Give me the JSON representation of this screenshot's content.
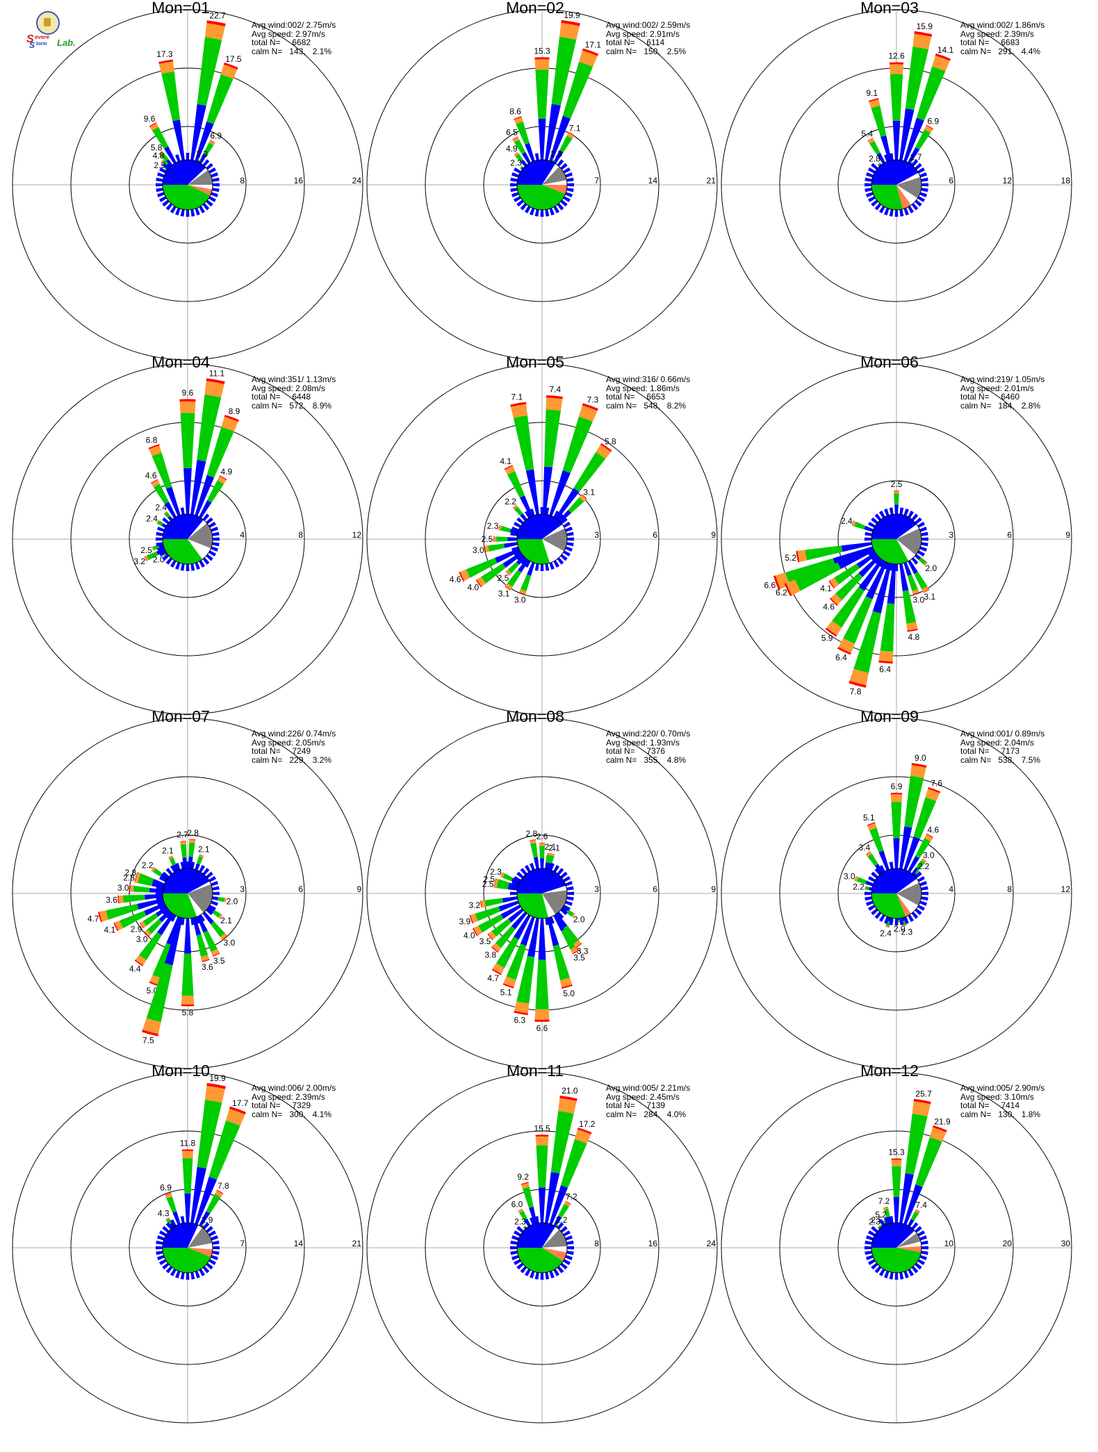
{
  "colors": {
    "blue": "#0000ff",
    "green": "#00cc00",
    "orange": "#ff9933",
    "red": "#ff0000",
    "gray": "#808080",
    "salmon": "#ff7f50",
    "white": "#ffffff",
    "grid": "#aaaaaa"
  },
  "logo": {
    "s1": "S",
    "w1": "evere",
    "s2": "S",
    "w2": "torm",
    "lab": "Lab."
  },
  "chart_data": [
    {
      "type": "windrose",
      "title": "Mon=01",
      "stats": {
        "avg_wind": "002/ 2.75m/s",
        "avg_speed": "2.97m/s",
        "total_n": "6682",
        "calm_n": "143,",
        "calm_pct": "2.1%"
      },
      "rings": [
        8,
        16,
        24
      ],
      "rmax": 24,
      "labels": [
        {
          "dir": 350,
          "value": 17.3
        },
        {
          "dir": 10,
          "value": 22.7
        },
        {
          "dir": 20,
          "value": 17.5
        },
        {
          "dir": 330,
          "value": 9.6
        },
        {
          "dir": 320,
          "value": 5.8
        },
        {
          "dir": 315,
          "value": 4.8
        },
        {
          "dir": 305,
          "value": 2.5
        },
        {
          "dir": 30,
          "value": 6.9
        },
        {
          "dir": 25,
          "value": 2.3
        }
      ],
      "pie": [
        {
          "c": "blue",
          "v": 38
        },
        {
          "c": "white",
          "v": 2
        },
        {
          "c": "gray",
          "v": 10
        },
        {
          "c": "white",
          "v": 3
        },
        {
          "c": "salmon",
          "v": 4
        },
        {
          "c": "green",
          "v": 43
        }
      ]
    },
    {
      "type": "windrose",
      "title": "Mon=02",
      "stats": {
        "avg_wind": "002/ 2.59m/s",
        "avg_speed": "2.91m/s",
        "total_n": "6114",
        "calm_n": "150,",
        "calm_pct": "2.5%"
      },
      "rings": [
        7,
        14,
        21
      ],
      "rmax": 21,
      "labels": [
        {
          "dir": 0,
          "value": 15.3
        },
        {
          "dir": 10,
          "value": 19.9
        },
        {
          "dir": 20,
          "value": 17.1
        },
        {
          "dir": 340,
          "value": 8.6
        },
        {
          "dir": 330,
          "value": 6.5
        },
        {
          "dir": 320,
          "value": 4.9
        },
        {
          "dir": 310,
          "value": 2.3
        },
        {
          "dir": 30,
          "value": 7.1
        },
        {
          "dir": 25,
          "value": 2.3
        }
      ],
      "pie": [
        {
          "c": "blue",
          "v": 34
        },
        {
          "c": "white",
          "v": 3
        },
        {
          "c": "gray",
          "v": 10
        },
        {
          "c": "white",
          "v": 3
        },
        {
          "c": "salmon",
          "v": 6
        },
        {
          "c": "green",
          "v": 44
        }
      ]
    },
    {
      "type": "windrose",
      "title": "Mon=03",
      "stats": {
        "avg_wind": "002/ 1.86m/s",
        "avg_speed": "2.39m/s",
        "total_n": "6683",
        "calm_n": "291,",
        "calm_pct": "4.4%"
      },
      "rings": [
        6,
        12,
        18
      ],
      "rmax": 18,
      "labels": [
        {
          "dir": 0,
          "value": 12.6
        },
        {
          "dir": 10,
          "value": 15.9
        },
        {
          "dir": 20,
          "value": 14.1
        },
        {
          "dir": 345,
          "value": 9.1
        },
        {
          "dir": 330,
          "value": 5.4
        },
        {
          "dir": 320,
          "value": 2.8
        },
        {
          "dir": 30,
          "value": 6.9
        },
        {
          "dir": 35,
          "value": 2.7
        }
      ],
      "pie": [
        {
          "c": "blue",
          "v": 42
        },
        {
          "c": "white",
          "v": 3
        },
        {
          "c": "gray",
          "v": 14
        },
        {
          "c": "white",
          "v": 6
        },
        {
          "c": "salmon",
          "v": 6
        },
        {
          "c": "green",
          "v": 29
        }
      ]
    },
    {
      "type": "windrose",
      "title": "Mon=04",
      "stats": {
        "avg_wind": "351/ 1.13m/s",
        "avg_speed": "2.08m/s",
        "total_n": "6448",
        "calm_n": "572,",
        "calm_pct": "8.9%"
      },
      "rings": [
        4,
        8,
        12
      ],
      "rmax": 12,
      "labels": [
        {
          "dir": 0,
          "value": 9.6
        },
        {
          "dir": 10,
          "value": 11.1
        },
        {
          "dir": 20,
          "value": 8.9
        },
        {
          "dir": 340,
          "value": 6.8
        },
        {
          "dir": 330,
          "value": 4.6
        },
        {
          "dir": 320,
          "value": 2.4
        },
        {
          "dir": 30,
          "value": 4.9
        },
        {
          "dir": 300,
          "value": 2.4
        },
        {
          "dir": 255,
          "value": 2.5
        },
        {
          "dir": 245,
          "value": 3.2
        },
        {
          "dir": 235,
          "value": 2.0
        }
      ],
      "pie": [
        {
          "c": "blue",
          "v": 36
        },
        {
          "c": "white",
          "v": 3
        },
        {
          "c": "gray",
          "v": 17
        },
        {
          "c": "white",
          "v": 9
        },
        {
          "c": "green",
          "v": 35
        }
      ]
    },
    {
      "type": "windrose",
      "title": "Mon=05",
      "stats": {
        "avg_wind": "316/ 0.66m/s",
        "avg_speed": "1.86m/s",
        "total_n": "6653",
        "calm_n": "548,",
        "calm_pct": "8.2%"
      },
      "rings": [
        3,
        6,
        9
      ],
      "rmax": 9,
      "labels": [
        {
          "dir": 350,
          "value": 7.1
        },
        {
          "dir": 5,
          "value": 7.4
        },
        {
          "dir": 20,
          "value": 7.3
        },
        {
          "dir": 35,
          "value": 5.8
        },
        {
          "dir": 45,
          "value": 3.1
        },
        {
          "dir": 335,
          "value": 4.1
        },
        {
          "dir": 320,
          "value": 2.2
        },
        {
          "dir": 285,
          "value": 2.3
        },
        {
          "dir": 270,
          "value": 2.5
        },
        {
          "dir": 260,
          "value": 3.0
        },
        {
          "dir": 245,
          "value": 4.6
        },
        {
          "dir": 235,
          "value": 4.0
        },
        {
          "dir": 225,
          "value": 2.5
        },
        {
          "dir": 215,
          "value": 3.1
        },
        {
          "dir": 200,
          "value": 3.0
        }
      ],
      "pie": [
        {
          "c": "blue",
          "v": 40
        },
        {
          "c": "white",
          "v": 3
        },
        {
          "c": "gray",
          "v": 15
        },
        {
          "c": "white",
          "v": 12
        },
        {
          "c": "green",
          "v": 30
        }
      ]
    },
    {
      "type": "windrose",
      "title": "Mon=06",
      "stats": {
        "avg_wind": "219/ 1.05m/s",
        "avg_speed": "2.01m/s",
        "total_n": "6460",
        "calm_n": "184,",
        "calm_pct": "2.8%"
      },
      "rings": [
        3,
        6,
        9
      ],
      "rmax": 9,
      "labels": [
        {
          "dir": 0,
          "value": 2.5
        },
        {
          "dir": 290,
          "value": 2.4
        },
        {
          "dir": 260,
          "value": 5.2
        },
        {
          "dir": 250,
          "value": 6.6
        },
        {
          "dir": 245,
          "value": 6.2
        },
        {
          "dir": 235,
          "value": 4.1
        },
        {
          "dir": 225,
          "value": 4.6
        },
        {
          "dir": 215,
          "value": 5.9
        },
        {
          "dir": 205,
          "value": 6.4
        },
        {
          "dir": 195,
          "value": 7.8
        },
        {
          "dir": 185,
          "value": 6.4
        },
        {
          "dir": 170,
          "value": 4.8
        },
        {
          "dir": 160,
          "value": 3.0
        },
        {
          "dir": 150,
          "value": 3.1
        },
        {
          "dir": 130,
          "value": 2.0
        }
      ],
      "pie": [
        {
          "c": "blue",
          "v": 40
        },
        {
          "c": "white",
          "v": 3
        },
        {
          "c": "gray",
          "v": 18
        },
        {
          "c": "white",
          "v": 6
        },
        {
          "c": "green",
          "v": 33
        }
      ]
    },
    {
      "type": "windrose",
      "title": "Mon=07",
      "stats": {
        "avg_wind": "226/ 0.74m/s",
        "avg_speed": "2.05m/s",
        "total_n": "7249",
        "calm_n": "229,",
        "calm_pct": "3.2%"
      },
      "rings": [
        3,
        6,
        9
      ],
      "rmax": 9,
      "labels": [
        {
          "dir": 355,
          "value": 2.7
        },
        {
          "dir": 5,
          "value": 2.8
        },
        {
          "dir": 20,
          "value": 2.1
        },
        {
          "dir": 335,
          "value": 2.1
        },
        {
          "dir": 305,
          "value": 2.2
        },
        {
          "dir": 290,
          "value": 2.8
        },
        {
          "dir": 285,
          "value": 2.8
        },
        {
          "dir": 275,
          "value": 3.0
        },
        {
          "dir": 265,
          "value": 3.6
        },
        {
          "dir": 255,
          "value": 4.7
        },
        {
          "dir": 245,
          "value": 4.1
        },
        {
          "dir": 235,
          "value": 2.9
        },
        {
          "dir": 225,
          "value": 3.0
        },
        {
          "dir": 215,
          "value": 4.4
        },
        {
          "dir": 200,
          "value": 5.0
        },
        {
          "dir": 195,
          "value": 7.5
        },
        {
          "dir": 180,
          "value": 5.8
        },
        {
          "dir": 165,
          "value": 3.6
        },
        {
          "dir": 155,
          "value": 3.5
        },
        {
          "dir": 140,
          "value": 3.0
        },
        {
          "dir": 125,
          "value": 2.1
        },
        {
          "dir": 100,
          "value": 2.0
        }
      ],
      "pie": [
        {
          "c": "blue",
          "v": 42
        },
        {
          "c": "white",
          "v": 2
        },
        {
          "c": "gray",
          "v": 20
        },
        {
          "c": "white",
          "v": 5
        },
        {
          "c": "green",
          "v": 31
        }
      ]
    },
    {
      "type": "windrose",
      "title": "Mon=08",
      "stats": {
        "avg_wind": "220/ 0.70m/s",
        "avg_speed": "1.93m/s",
        "total_n": "7376",
        "calm_n": "355,",
        "calm_pct": "4.8%"
      },
      "rings": [
        3,
        6,
        9
      ],
      "rmax": 9,
      "labels": [
        {
          "dir": 350,
          "value": 2.8
        },
        {
          "dir": 0,
          "value": 2.6
        },
        {
          "dir": 10,
          "value": 2.1
        },
        {
          "dir": 15,
          "value": 2.1
        },
        {
          "dir": 295,
          "value": 2.3
        },
        {
          "dir": 285,
          "value": 2.5
        },
        {
          "dir": 280,
          "value": 2.5
        },
        {
          "dir": 260,
          "value": 3.2
        },
        {
          "dir": 250,
          "value": 3.9
        },
        {
          "dir": 240,
          "value": 4.0
        },
        {
          "dir": 230,
          "value": 3.5
        },
        {
          "dir": 220,
          "value": 3.8
        },
        {
          "dir": 210,
          "value": 4.7
        },
        {
          "dir": 200,
          "value": 5.1
        },
        {
          "dir": 190,
          "value": 6.3
        },
        {
          "dir": 180,
          "value": 6.6
        },
        {
          "dir": 165,
          "value": 5.0
        },
        {
          "dir": 150,
          "value": 3.5
        },
        {
          "dir": 145,
          "value": 3.3
        },
        {
          "dir": 125,
          "value": 2.0
        }
      ],
      "pie": [
        {
          "c": "blue",
          "v": 45
        },
        {
          "c": "white",
          "v": 3
        },
        {
          "c": "gray",
          "v": 18
        },
        {
          "c": "white",
          "v": 5
        },
        {
          "c": "green",
          "v": 29
        }
      ]
    },
    {
      "type": "windrose",
      "title": "Mon=09",
      "stats": {
        "avg_wind": "001/ 0.89m/s",
        "avg_speed": "2.04m/s",
        "total_n": "7173",
        "calm_n": "538,",
        "calm_pct": "7.5%"
      },
      "rings": [
        4,
        8,
        12
      ],
      "rmax": 12,
      "labels": [
        {
          "dir": 0,
          "value": 6.9
        },
        {
          "dir": 10,
          "value": 9.0
        },
        {
          "dir": 20,
          "value": 7.6
        },
        {
          "dir": 340,
          "value": 5.1
        },
        {
          "dir": 325,
          "value": 3.4
        },
        {
          "dir": 30,
          "value": 4.6
        },
        {
          "dir": 40,
          "value": 3.0
        },
        {
          "dir": 45,
          "value": 2.2
        },
        {
          "dir": 290,
          "value": 3.0
        },
        {
          "dir": 280,
          "value": 2.2
        },
        {
          "dir": 195,
          "value": 2.4
        },
        {
          "dir": 175,
          "value": 2.0
        },
        {
          "dir": 165,
          "value": 2.3
        }
      ],
      "pie": [
        {
          "c": "blue",
          "v": 40
        },
        {
          "c": "white",
          "v": 3
        },
        {
          "c": "gray",
          "v": 15
        },
        {
          "c": "white",
          "v": 7
        },
        {
          "c": "salmon",
          "v": 4
        },
        {
          "c": "green",
          "v": 31
        }
      ]
    },
    {
      "type": "windrose",
      "title": "Mon=10",
      "stats": {
        "avg_wind": "006/ 2.00m/s",
        "avg_speed": "2.39m/s",
        "total_n": "7329",
        "calm_n": "300,",
        "calm_pct": "4.1%"
      },
      "rings": [
        7,
        14,
        21
      ],
      "rmax": 21,
      "labels": [
        {
          "dir": 0,
          "value": 11.8
        },
        {
          "dir": 10,
          "value": 19.9
        },
        {
          "dir": 20,
          "value": 17.7
        },
        {
          "dir": 340,
          "value": 6.9
        },
        {
          "dir": 325,
          "value": 4.3
        },
        {
          "dir": 30,
          "value": 7.8
        },
        {
          "dir": 35,
          "value": 2.9
        }
      ],
      "pie": [
        {
          "c": "blue",
          "v": 32
        },
        {
          "c": "white",
          "v": 3
        },
        {
          "c": "gray",
          "v": 12
        },
        {
          "c": "white",
          "v": 4
        },
        {
          "c": "salmon",
          "v": 5
        },
        {
          "c": "green",
          "v": 44
        }
      ]
    },
    {
      "type": "windrose",
      "title": "Mon=11",
      "stats": {
        "avg_wind": "005/ 2.21m/s",
        "avg_speed": "2.45m/s",
        "total_n": "7139",
        "calm_n": "284,",
        "calm_pct": "4.0%"
      },
      "rings": [
        8,
        16,
        24
      ],
      "rmax": 24,
      "labels": [
        {
          "dir": 0,
          "value": 15.5
        },
        {
          "dir": 10,
          "value": 21.0
        },
        {
          "dir": 20,
          "value": 17.2
        },
        {
          "dir": 345,
          "value": 9.2
        },
        {
          "dir": 330,
          "value": 6.0
        },
        {
          "dir": 320,
          "value": 2.3
        },
        {
          "dir": 30,
          "value": 7.2
        },
        {
          "dir": 35,
          "value": 2.2
        }
      ],
      "pie": [
        {
          "c": "blue",
          "v": 34
        },
        {
          "c": "white",
          "v": 3
        },
        {
          "c": "gray",
          "v": 12
        },
        {
          "c": "white",
          "v": 4
        },
        {
          "c": "salmon",
          "v": 6
        },
        {
          "c": "green",
          "v": 41
        }
      ]
    },
    {
      "type": "windrose",
      "title": "Mon=12",
      "stats": {
        "avg_wind": "005/ 2.90m/s",
        "avg_speed": "3.10m/s",
        "total_n": "7414",
        "calm_n": "130,",
        "calm_pct": "1.8%"
      },
      "rings": [
        10,
        20,
        30
      ],
      "rmax": 30,
      "labels": [
        {
          "dir": 0,
          "value": 15.3
        },
        {
          "dir": 10,
          "value": 25.7
        },
        {
          "dir": 20,
          "value": 21.9
        },
        {
          "dir": 345,
          "value": 7.2
        },
        {
          "dir": 335,
          "value": 5.2
        },
        {
          "dir": 325,
          "value": 2.5
        },
        {
          "dir": 320,
          "value": 2.3
        },
        {
          "dir": 30,
          "value": 7.4
        }
      ],
      "pie": [
        {
          "c": "blue",
          "v": 38
        },
        {
          "c": "white",
          "v": 2
        },
        {
          "c": "gray",
          "v": 6
        },
        {
          "c": "white",
          "v": 3
        },
        {
          "c": "salmon",
          "v": 4
        },
        {
          "c": "green",
          "v": 47
        }
      ]
    }
  ]
}
